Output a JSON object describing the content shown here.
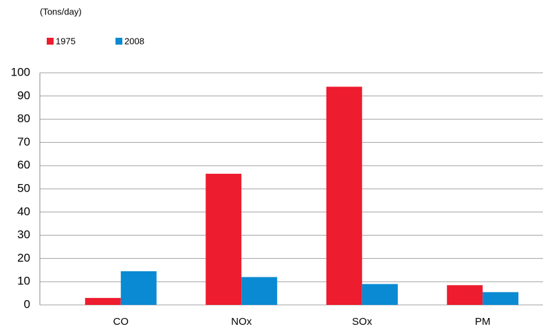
{
  "chart_data": {
    "type": "bar",
    "y_axis_label": "(Tons/day)",
    "categories": [
      "CO",
      "NOx",
      "SOx",
      "PM"
    ],
    "series": [
      {
        "name": "1975",
        "color": "#ed1c2e",
        "values": [
          3,
          56.5,
          94,
          8.5
        ]
      },
      {
        "name": "2008",
        "color": "#0a8ad2",
        "values": [
          14.5,
          12,
          9,
          5.5
        ]
      }
    ],
    "ylim": [
      0,
      100
    ],
    "yticks": [
      0,
      10,
      20,
      30,
      40,
      50,
      60,
      70,
      80,
      90,
      100
    ],
    "grid": true,
    "legend": "top-left"
  }
}
